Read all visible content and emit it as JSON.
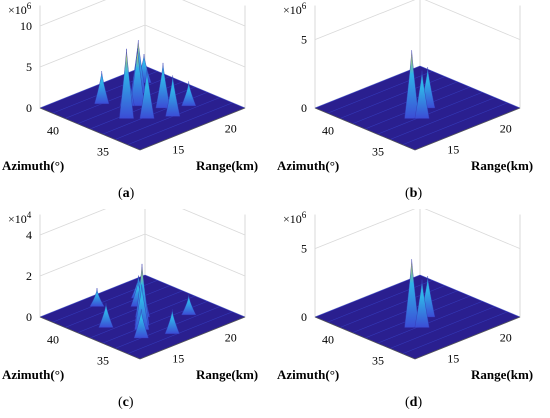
{
  "figure": {
    "axis_labels": {
      "azimuth": "Azimuth(°)",
      "range": "Range(km)"
    },
    "colors": {
      "surface_dark": "#2a1f8f",
      "surface_mid": "#3b4cd6",
      "surface_hi": "#2fb3e8",
      "peak": "#e7d23a",
      "grid": "#d9d9d9"
    }
  },
  "chart_data": [
    {
      "id": "a",
      "type": "surface",
      "caption": "a",
      "exponent_base": "×10",
      "exponent": "6",
      "zticks": [
        "0",
        "5",
        "10"
      ],
      "zlim": [
        0,
        10
      ],
      "azimuth_ticks": [
        "40",
        "35"
      ],
      "range_ticks": [
        "15",
        "20"
      ],
      "zlabel_scale": "×10^6",
      "peaks": [
        {
          "az": 38.5,
          "range": 16.0,
          "z": 8.5,
          "width": 0.05
        },
        {
          "az": 37.5,
          "range": 17.0,
          "z": 6.0,
          "width": 0.05
        },
        {
          "az": 39.5,
          "range": 18.0,
          "z": 7.0,
          "width": 0.05
        },
        {
          "az": 38.0,
          "range": 19.0,
          "z": 5.5,
          "width": 0.05
        },
        {
          "az": 40.0,
          "range": 17.5,
          "z": 5.0,
          "width": 0.05
        },
        {
          "az": 41.0,
          "range": 19.5,
          "z": 6.5,
          "width": 0.05
        },
        {
          "az": 36.5,
          "range": 18.5,
          "z": 5.0,
          "width": 0.05
        },
        {
          "az": 42.0,
          "range": 21.0,
          "z": 3.5,
          "width": 0.05
        },
        {
          "az": 37.0,
          "range": 20.5,
          "z": 3.0,
          "width": 0.05
        },
        {
          "az": 41.5,
          "range": 16.5,
          "z": 4.0,
          "width": 0.05
        }
      ]
    },
    {
      "id": "b",
      "type": "surface",
      "caption": "b",
      "exponent_base": "×10",
      "exponent": "6",
      "zticks": [
        "0",
        "5"
      ],
      "zlim": [
        0,
        6
      ],
      "azimuth_ticks": [
        "40",
        "35"
      ],
      "range_ticks": [
        "15",
        "20"
      ],
      "peaks": [
        {
          "az": 38.0,
          "range": 16.5,
          "z": 5.0,
          "width": 0.04
        },
        {
          "az": 37.5,
          "range": 17.0,
          "z": 3.5,
          "width": 0.04
        },
        {
          "az": 38.5,
          "range": 18.5,
          "z": 3.0,
          "width": 0.04
        }
      ]
    },
    {
      "id": "c",
      "type": "surface",
      "caption": "c",
      "exponent_base": "×10",
      "exponent": "4",
      "zticks": [
        "0",
        "2",
        "4"
      ],
      "zlim": [
        0,
        4
      ],
      "azimuth_ticks": [
        "40",
        "35"
      ],
      "range_ticks": [
        "15",
        "20"
      ],
      "peaks": [
        {
          "az": 38.0,
          "range": 17.0,
          "z": 3.0,
          "width": 0.05
        },
        {
          "az": 37.5,
          "range": 16.5,
          "z": 2.2,
          "width": 0.05
        },
        {
          "az": 39.0,
          "range": 18.0,
          "z": 1.8,
          "width": 0.05
        },
        {
          "az": 36.5,
          "range": 15.5,
          "z": 1.4,
          "width": 0.05
        },
        {
          "az": 40.5,
          "range": 19.0,
          "z": 1.3,
          "width": 0.05
        },
        {
          "az": 35.5,
          "range": 17.5,
          "z": 1.2,
          "width": 0.05
        },
        {
          "az": 41.5,
          "range": 20.0,
          "z": 1.1,
          "width": 0.05
        },
        {
          "az": 39.5,
          "range": 15.0,
          "z": 1.2,
          "width": 0.05
        },
        {
          "az": 37.0,
          "range": 20.5,
          "z": 1.0,
          "width": 0.05
        },
        {
          "az": 42.5,
          "range": 17.0,
          "z": 0.9,
          "width": 0.05
        }
      ]
    },
    {
      "id": "d",
      "type": "surface",
      "caption": "d",
      "exponent_base": "×10",
      "exponent": "6",
      "zticks": [
        "0",
        "5"
      ],
      "zlim": [
        0,
        6
      ],
      "azimuth_ticks": [
        "40",
        "35"
      ],
      "range_ticks": [
        "15",
        "20"
      ],
      "peaks": [
        {
          "az": 38.0,
          "range": 16.5,
          "z": 5.0,
          "width": 0.04
        },
        {
          "az": 37.5,
          "range": 17.0,
          "z": 3.5,
          "width": 0.04
        },
        {
          "az": 38.5,
          "range": 18.5,
          "z": 3.0,
          "width": 0.04
        }
      ]
    }
  ]
}
